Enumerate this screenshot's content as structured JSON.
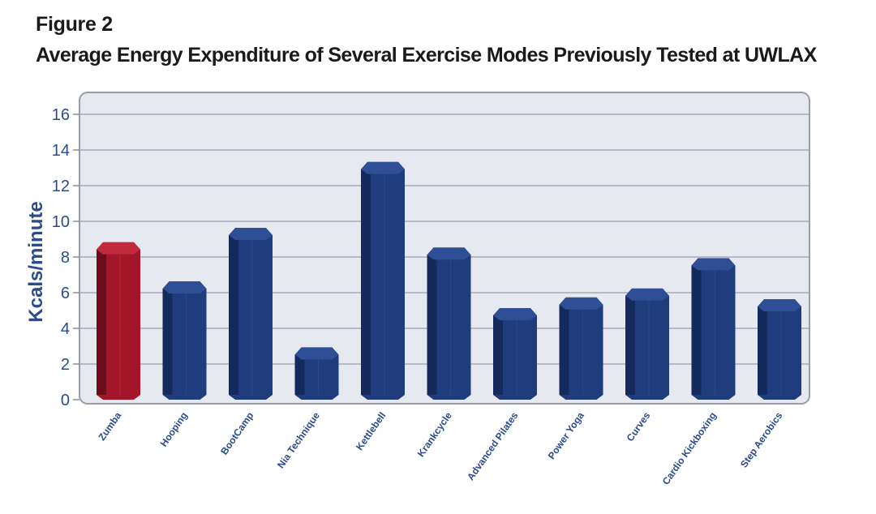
{
  "figure_label": "Figure 2",
  "title": "Average Energy Expenditure of Several Exercise Modes Previously Tested at UWLAX",
  "colors": {
    "plot_background": "#e7e9f0",
    "bar_highlight": "#a3162a",
    "bar_default": "#1f3c7d",
    "axis_text": "#2a4b8e",
    "gridline": "#a6a9b8"
  },
  "chart_data": {
    "type": "bar",
    "title": "Average Energy Expenditure of Several Exercise Modes Previously Tested at UWLAX",
    "xlabel": "",
    "ylabel": "Kcals/minute",
    "ylim": [
      0,
      16
    ],
    "yticks": [
      0,
      2,
      4,
      6,
      8,
      10,
      12,
      14,
      16
    ],
    "grid": true,
    "categories": [
      "Zumba",
      "Hooping",
      "BootCamp",
      "Nia Technique",
      "Kettlebell",
      "Krankcycle",
      "Advanced Pilates",
      "Power Yoga",
      "Curves",
      "Cardio Kickboxing",
      "Step Aerobics"
    ],
    "values": [
      8.7,
      6.5,
      9.5,
      2.8,
      13.2,
      8.4,
      5.0,
      5.6,
      6.1,
      7.8,
      5.5
    ],
    "highlighted_category": "Zumba"
  }
}
